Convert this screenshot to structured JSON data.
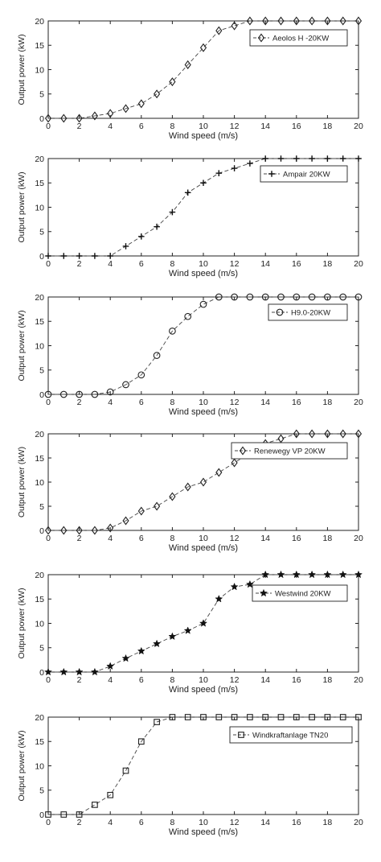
{
  "chart_data": [
    {
      "type": "line",
      "xlabel": "Wind speed (m/s)",
      "ylabel": "Output power (kW)",
      "xlim": [
        0,
        20
      ],
      "ylim": [
        0,
        20
      ],
      "xticks": [
        "0",
        "2",
        "4",
        "6",
        "8",
        "10",
        "12",
        "14",
        "16",
        "18",
        "20"
      ],
      "yticks": [
        "0",
        "5",
        "10",
        "15",
        "20"
      ],
      "legend_position": "top-right",
      "series": [
        {
          "name": "Aeolos H -20KW",
          "marker": "diamond",
          "x": [
            0,
            1,
            2,
            3,
            4,
            5,
            6,
            7,
            8,
            9,
            10,
            11,
            12,
            13,
            14,
            15,
            16,
            17,
            18,
            19,
            20
          ],
          "y": [
            0,
            0,
            0,
            0.5,
            1,
            2,
            3,
            5,
            7.5,
            11,
            14.5,
            18,
            19,
            20,
            20,
            20,
            20,
            20,
            20,
            20,
            20
          ]
        }
      ]
    },
    {
      "type": "line",
      "xlabel": "Wind speed (m/s)",
      "ylabel": "Output power (kW)",
      "xlim": [
        0,
        20
      ],
      "ylim": [
        0,
        20
      ],
      "xticks": [
        "0",
        "2",
        "4",
        "6",
        "8",
        "10",
        "12",
        "14",
        "16",
        "18",
        "20"
      ],
      "yticks": [
        "0",
        "5",
        "10",
        "15",
        "20"
      ],
      "legend_position": "top-right",
      "series": [
        {
          "name": "Ampair 20KW",
          "marker": "plus",
          "x": [
            0,
            1,
            2,
            3,
            4,
            5,
            6,
            7,
            8,
            9,
            10,
            11,
            12,
            13,
            14,
            15,
            16,
            17,
            18,
            19,
            20
          ],
          "y": [
            0,
            0,
            0,
            0,
            0,
            2,
            4,
            6,
            9,
            13,
            15,
            17,
            18,
            19,
            20,
            20,
            20,
            20,
            20,
            20,
            20
          ]
        }
      ]
    },
    {
      "type": "line",
      "xlabel": "Wind speed (m/s)",
      "ylabel": "Output power (kW)",
      "xlim": [
        0,
        20
      ],
      "ylim": [
        0,
        20
      ],
      "xticks": [
        "0",
        "2",
        "4",
        "6",
        "8",
        "10",
        "12",
        "14",
        "16",
        "18",
        "20"
      ],
      "yticks": [
        "0",
        "5",
        "10",
        "15",
        "20"
      ],
      "legend_position": "top-right",
      "series": [
        {
          "name": "H9.0-20KW",
          "marker": "circle",
          "x": [
            0,
            1,
            2,
            3,
            4,
            5,
            6,
            7,
            8,
            9,
            10,
            11,
            12,
            13,
            14,
            15,
            16,
            17,
            18,
            19,
            20
          ],
          "y": [
            0,
            0,
            0,
            0,
            0.5,
            2,
            4,
            8,
            13,
            16,
            18.5,
            20,
            20,
            20,
            20,
            20,
            20,
            20,
            20,
            20,
            20
          ]
        }
      ]
    },
    {
      "type": "line",
      "xlabel": "Wind speed (m/s)",
      "ylabel": "Output power (kW)",
      "xlim": [
        0,
        20
      ],
      "ylim": [
        0,
        20
      ],
      "xticks": [
        "0",
        "2",
        "4",
        "6",
        "8",
        "10",
        "12",
        "14",
        "16",
        "18",
        "20"
      ],
      "yticks": [
        "0",
        "5",
        "10",
        "15",
        "20"
      ],
      "legend_position": "top-right",
      "series": [
        {
          "name": "Renewegy VP 20KW",
          "marker": "diamond",
          "x": [
            0,
            1,
            2,
            3,
            4,
            5,
            6,
            7,
            8,
            9,
            10,
            11,
            12,
            13,
            14,
            15,
            16,
            17,
            18,
            19,
            20
          ],
          "y": [
            0,
            0,
            0,
            0,
            0.5,
            2,
            4,
            5,
            7,
            9,
            10,
            12,
            14,
            16,
            18,
            19,
            20,
            20,
            20,
            20,
            20
          ]
        }
      ]
    },
    {
      "type": "line",
      "xlabel": "Wind speed (m/s)",
      "ylabel": "Output power (kW)",
      "xlim": [
        0,
        20
      ],
      "ylim": [
        0,
        20
      ],
      "xticks": [
        "0",
        "2",
        "4",
        "6",
        "8",
        "10",
        "12",
        "14",
        "16",
        "18",
        "20"
      ],
      "yticks": [
        "0",
        "5",
        "10",
        "15",
        "20"
      ],
      "legend_position": "top-right",
      "series": [
        {
          "name": "Westwind 20KW",
          "marker": "star",
          "x": [
            0,
            1,
            2,
            3,
            4,
            5,
            6,
            7,
            8,
            9,
            10,
            11,
            12,
            13,
            14,
            15,
            16,
            17,
            18,
            19,
            20
          ],
          "y": [
            0,
            0,
            0,
            0,
            1.2,
            2.8,
            4.3,
            5.8,
            7.3,
            8.5,
            10,
            15,
            17.5,
            18,
            20,
            20,
            20,
            20,
            20,
            20,
            20
          ]
        }
      ]
    },
    {
      "type": "line",
      "xlabel": "Wind speed (m/s)",
      "ylabel": "Output power (kW)",
      "xlim": [
        0,
        20
      ],
      "ylim": [
        0,
        20
      ],
      "xticks": [
        "0",
        "2",
        "4",
        "6",
        "8",
        "10",
        "12",
        "14",
        "16",
        "18",
        "20"
      ],
      "yticks": [
        "0",
        "5",
        "10",
        "15",
        "20"
      ],
      "legend_position": "top-right",
      "series": [
        {
          "name": "Windkraftanlage TN20",
          "marker": "square",
          "x": [
            0,
            1,
            2,
            3,
            4,
            5,
            6,
            7,
            8,
            9,
            10,
            11,
            12,
            13,
            14,
            15,
            16,
            17,
            18,
            19,
            20
          ],
          "y": [
            0,
            0,
            0,
            2,
            4,
            9,
            15,
            19,
            20,
            20,
            20,
            20,
            20,
            20,
            20,
            20,
            20,
            20,
            20,
            20,
            20
          ]
        }
      ]
    }
  ]
}
